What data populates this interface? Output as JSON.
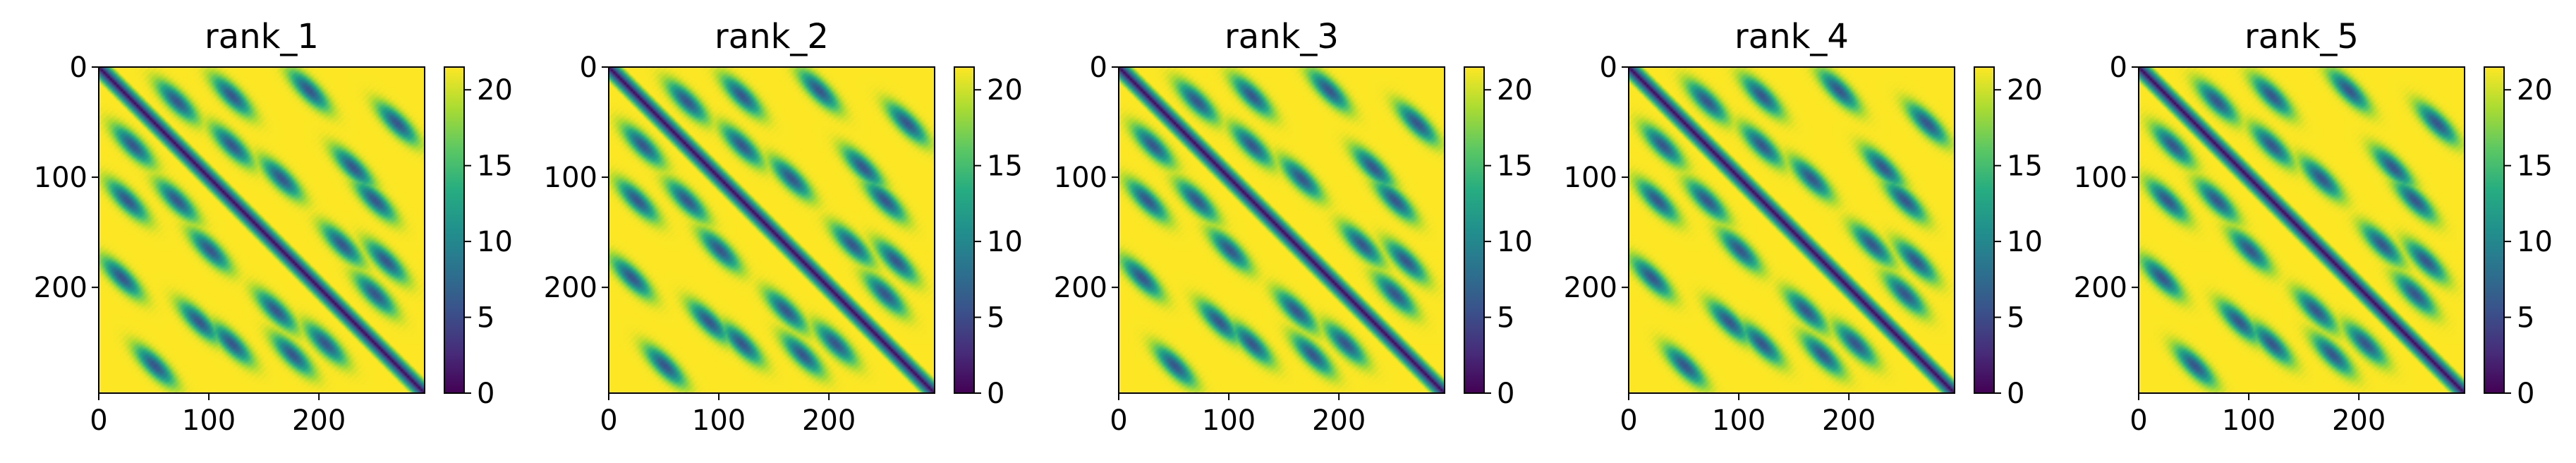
{
  "chart_data": [
    {
      "type": "heatmap",
      "title": "rank_1",
      "size": 296,
      "x_ticks": [
        0,
        100,
        200
      ],
      "y_ticks": [
        0,
        100,
        200
      ],
      "colorbar": {
        "vmin": 0,
        "vmax": 21.5,
        "ticks": [
          0,
          5,
          10,
          15,
          20
        ],
        "colormap": "viridis"
      },
      "pattern": {
        "diagonal": true,
        "secondary_structure_centers": [
          [
            30,
            70
          ],
          [
            70,
            30
          ],
          [
            25,
            120
          ],
          [
            120,
            25
          ],
          [
            70,
            120
          ],
          [
            120,
            70
          ],
          [
            160,
            220
          ],
          [
            220,
            160
          ],
          [
            175,
            260
          ],
          [
            260,
            175
          ],
          [
            50,
            270
          ],
          [
            270,
            50
          ],
          [
            100,
            165
          ],
          [
            165,
            100
          ],
          [
            205,
            250
          ],
          [
            250,
            205
          ],
          [
            90,
            230
          ],
          [
            230,
            90
          ],
          [
            20,
            190
          ],
          [
            190,
            20
          ],
          [
            120,
            250
          ],
          [
            250,
            120
          ]
        ]
      }
    },
    {
      "type": "heatmap",
      "title": "rank_2",
      "size": 296,
      "x_ticks": [
        0,
        100,
        200
      ],
      "y_ticks": [
        0,
        100,
        200
      ],
      "colorbar": {
        "vmin": 0,
        "vmax": 21.5,
        "ticks": [
          0,
          5,
          10,
          15,
          20
        ],
        "colormap": "viridis"
      },
      "pattern": {
        "diagonal": true,
        "secondary_structure_centers": [
          [
            30,
            70
          ],
          [
            70,
            30
          ],
          [
            25,
            120
          ],
          [
            120,
            25
          ],
          [
            70,
            120
          ],
          [
            120,
            70
          ],
          [
            160,
            220
          ],
          [
            220,
            160
          ],
          [
            175,
            260
          ],
          [
            260,
            175
          ],
          [
            50,
            270
          ],
          [
            270,
            50
          ],
          [
            100,
            165
          ],
          [
            165,
            100
          ],
          [
            205,
            250
          ],
          [
            250,
            205
          ],
          [
            90,
            230
          ],
          [
            230,
            90
          ],
          [
            20,
            190
          ],
          [
            190,
            20
          ],
          [
            120,
            250
          ],
          [
            250,
            120
          ]
        ]
      }
    },
    {
      "type": "heatmap",
      "title": "rank_3",
      "size": 296,
      "x_ticks": [
        0,
        100,
        200
      ],
      "y_ticks": [
        0,
        100,
        200
      ],
      "colorbar": {
        "vmin": 0,
        "vmax": 21.5,
        "ticks": [
          0,
          5,
          10,
          15,
          20
        ],
        "colormap": "viridis"
      },
      "pattern": {
        "diagonal": true,
        "secondary_structure_centers": [
          [
            30,
            70
          ],
          [
            70,
            30
          ],
          [
            25,
            120
          ],
          [
            120,
            25
          ],
          [
            70,
            120
          ],
          [
            120,
            70
          ],
          [
            160,
            220
          ],
          [
            220,
            160
          ],
          [
            175,
            260
          ],
          [
            260,
            175
          ],
          [
            50,
            270
          ],
          [
            270,
            50
          ],
          [
            100,
            165
          ],
          [
            165,
            100
          ],
          [
            205,
            250
          ],
          [
            250,
            205
          ],
          [
            90,
            230
          ],
          [
            230,
            90
          ],
          [
            20,
            190
          ],
          [
            190,
            20
          ],
          [
            120,
            250
          ],
          [
            250,
            120
          ]
        ]
      }
    },
    {
      "type": "heatmap",
      "title": "rank_4",
      "size": 296,
      "x_ticks": [
        0,
        100,
        200
      ],
      "y_ticks": [
        0,
        100,
        200
      ],
      "colorbar": {
        "vmin": 0,
        "vmax": 21.5,
        "ticks": [
          0,
          5,
          10,
          15,
          20
        ],
        "colormap": "viridis"
      },
      "pattern": {
        "diagonal": true,
        "secondary_structure_centers": [
          [
            30,
            70
          ],
          [
            70,
            30
          ],
          [
            25,
            120
          ],
          [
            120,
            25
          ],
          [
            70,
            120
          ],
          [
            120,
            70
          ],
          [
            160,
            220
          ],
          [
            220,
            160
          ],
          [
            175,
            260
          ],
          [
            260,
            175
          ],
          [
            50,
            270
          ],
          [
            270,
            50
          ],
          [
            100,
            165
          ],
          [
            165,
            100
          ],
          [
            205,
            250
          ],
          [
            250,
            205
          ],
          [
            90,
            230
          ],
          [
            230,
            90
          ],
          [
            20,
            190
          ],
          [
            190,
            20
          ],
          [
            120,
            250
          ],
          [
            250,
            120
          ]
        ]
      }
    },
    {
      "type": "heatmap",
      "title": "rank_5",
      "size": 296,
      "x_ticks": [
        0,
        100,
        200
      ],
      "y_ticks": [
        0,
        100,
        200
      ],
      "colorbar": {
        "vmin": 0,
        "vmax": 21.5,
        "ticks": [
          0,
          5,
          10,
          15,
          20
        ],
        "colormap": "viridis"
      },
      "pattern": {
        "diagonal": true,
        "secondary_structure_centers": [
          [
            30,
            70
          ],
          [
            70,
            30
          ],
          [
            25,
            120
          ],
          [
            120,
            25
          ],
          [
            70,
            120
          ],
          [
            120,
            70
          ],
          [
            160,
            220
          ],
          [
            220,
            160
          ],
          [
            175,
            260
          ],
          [
            260,
            175
          ],
          [
            50,
            270
          ],
          [
            270,
            50
          ],
          [
            100,
            165
          ],
          [
            165,
            100
          ],
          [
            205,
            250
          ],
          [
            250,
            205
          ],
          [
            90,
            230
          ],
          [
            230,
            90
          ],
          [
            20,
            190
          ],
          [
            190,
            20
          ],
          [
            120,
            250
          ],
          [
            250,
            120
          ]
        ]
      }
    }
  ]
}
